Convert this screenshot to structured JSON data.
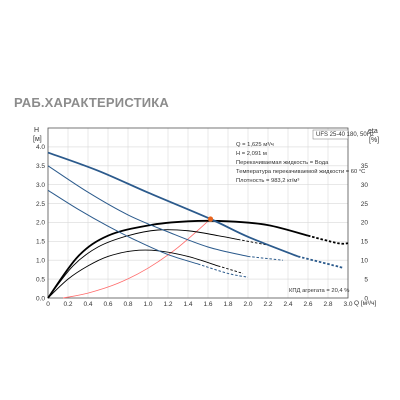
{
  "page": {
    "heading": "РАБ.ХАРАКТЕРИСТИКА"
  },
  "colors": {
    "qh": "#2b5a8c",
    "eta": "#000000",
    "grid": "#d9d9d9",
    "system": "#ff6a6a",
    "point": "#e8641e"
  },
  "chart_data": {
    "type": "line",
    "xlabel": "Q [м³/ч]",
    "ylabel_left": [
      "H",
      "[м]"
    ],
    "ylabel_right": [
      "eta",
      "[%]"
    ],
    "xlim": [
      0,
      3.0
    ],
    "ylim_left": [
      0,
      4.5
    ],
    "ylim_right": [
      0,
      45
    ],
    "x_ticks": [
      0,
      0.2,
      0.4,
      0.6,
      0.8,
      1.0,
      1.2,
      1.4,
      1.6,
      1.8,
      2.0,
      2.2,
      2.4,
      2.6,
      2.8,
      3.0
    ],
    "x_tick_labels": [
      "0",
      "0.2",
      "0.4",
      "0.6",
      "0.8",
      "1.0",
      "1.2",
      "1.4",
      "1.6",
      "1.8",
      "2.0",
      "2.2",
      "2.4",
      "2.6",
      "2.8",
      "3.0"
    ],
    "y_left_ticks": [
      0,
      0.5,
      1.0,
      1.5,
      2.0,
      2.5,
      3.0,
      3.5,
      4.0
    ],
    "y_left_tick_labels": [
      "0.0",
      "0.5",
      "1.0",
      "1.5",
      "2.0",
      "2.5",
      "3.0",
      "3.5",
      "4.0"
    ],
    "y_right_ticks": [
      0,
      5,
      10,
      15,
      20,
      25,
      30,
      35
    ],
    "y_right_tick_labels": [
      "0",
      "5",
      "10",
      "15",
      "20",
      "25",
      "30",
      "35"
    ],
    "grid": true,
    "legend_box": "UFS 25-40 180, 50Hz",
    "info": [
      "Q = 1,625 м³/ч",
      "H = 2,091 м",
      "Перекачиваемая жидкость = Вода",
      "Температура перекачиваемой жидкости = 60 °C",
      "Плотность = 983,2 кг/м³"
    ],
    "efficiency_label": "КПД агрегата = 20,4 %",
    "duty_point": {
      "q": 1.625,
      "h": 2.091
    },
    "qh_series": [
      {
        "speed": "3",
        "x": [
          0,
          0.5,
          1.0,
          1.625,
          2.0,
          2.5,
          2.95
        ],
        "h": [
          3.85,
          3.37,
          2.79,
          2.091,
          1.62,
          1.1,
          0.8
        ],
        "dashed_from_x": 2.5
      },
      {
        "speed": "2",
        "x": [
          0,
          0.4,
          0.8,
          1.2,
          1.6,
          2.0,
          2.35
        ],
        "h": [
          3.5,
          2.8,
          2.2,
          1.75,
          1.35,
          1.1,
          1.0
        ],
        "dashed_from_x": 2.0
      },
      {
        "speed": "1",
        "x": [
          0,
          0.3,
          0.6,
          0.9,
          1.2,
          1.5,
          1.8,
          2.0
        ],
        "h": [
          2.85,
          2.35,
          1.9,
          1.5,
          1.15,
          0.9,
          0.65,
          0.55
        ],
        "dashed_from_x": 1.75
      }
    ],
    "eta_series": [
      {
        "speed": "3",
        "x": [
          0,
          0.3,
          0.6,
          1.0,
          1.4,
          1.8,
          2.2,
          2.6,
          2.9,
          3.0
        ],
        "eta": [
          0,
          11,
          16.5,
          19.2,
          20.3,
          20.3,
          19.3,
          16.5,
          14.5,
          14.5
        ],
        "dashed_from_x": 2.88
      },
      {
        "speed": "2",
        "x": [
          0,
          0.25,
          0.5,
          0.8,
          1.1,
          1.4,
          1.7,
          1.9,
          2.2
        ],
        "eta": [
          0,
          8.5,
          13.5,
          16.5,
          18,
          17.8,
          16.5,
          15.5,
          14
        ],
        "dashed_from_x": 1.95
      },
      {
        "speed": "1",
        "x": [
          0,
          0.2,
          0.4,
          0.6,
          0.85,
          1.1,
          1.4,
          1.7,
          1.95
        ],
        "eta": [
          0,
          5,
          8.5,
          11,
          12.5,
          12.5,
          11,
          8.5,
          6.5
        ],
        "dashed_from_x": 1.7
      }
    ],
    "system_curve": {
      "x": [
        0.15,
        0.4,
        0.7,
        1.0,
        1.3,
        1.625
      ],
      "h": [
        0,
        0.13,
        0.39,
        0.79,
        1.34,
        2.091
      ]
    }
  }
}
